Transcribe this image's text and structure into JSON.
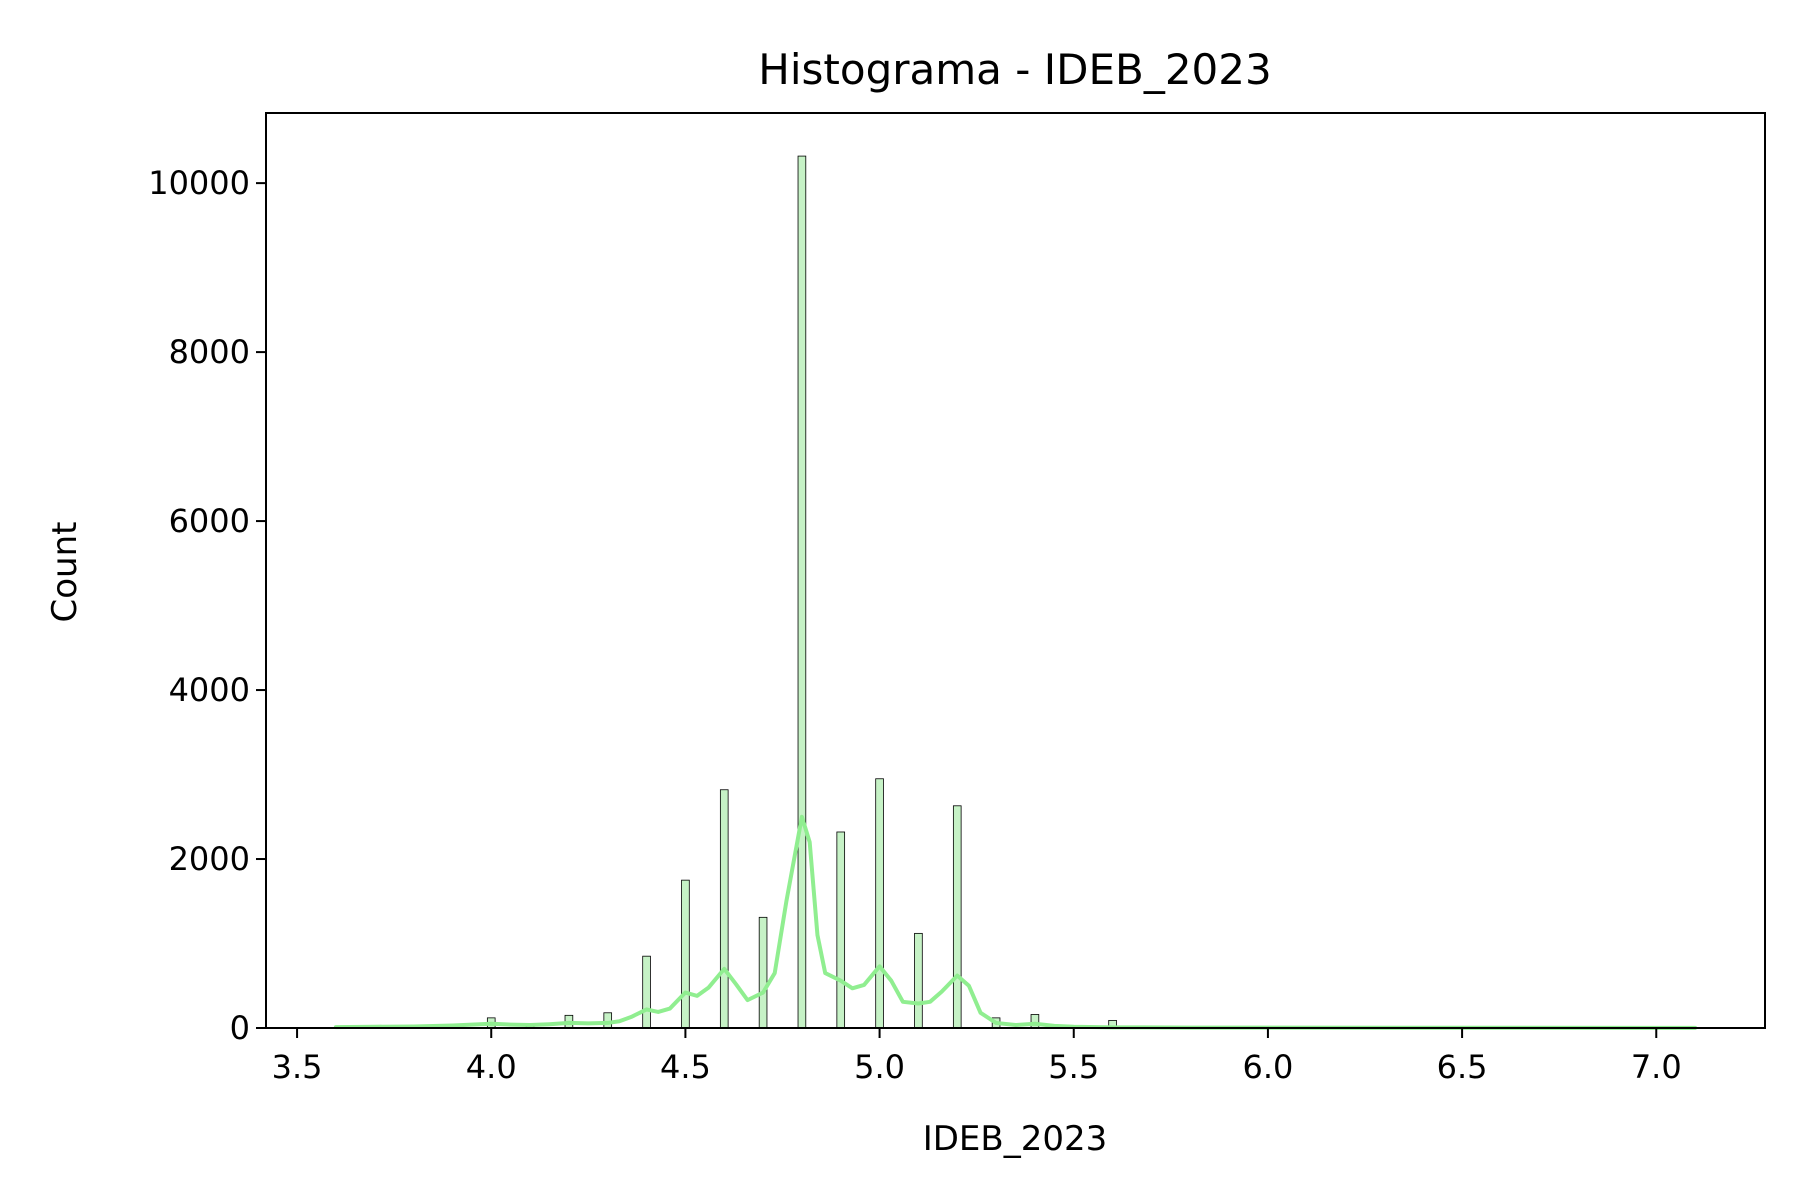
{
  "colors": {
    "bar_fill": "#c6f2c6",
    "kde_line": "#90ee90",
    "edge": "#000000"
  },
  "chart_data": {
    "type": "bar",
    "title": "Histograma - IDEB_2023",
    "xlabel": "IDEB_2023",
    "ylabel": "Count",
    "xlim": [
      3.42,
      7.28
    ],
    "ylim": [
      0,
      10830
    ],
    "bin_width": 0.02,
    "xticks": [
      3.5,
      4.0,
      4.5,
      5.0,
      5.5,
      6.0,
      6.5,
      7.0
    ],
    "xtick_labels": [
      "3.5",
      "4.0",
      "4.5",
      "5.0",
      "5.5",
      "6.0",
      "6.5",
      "7.0"
    ],
    "yticks": [
      0,
      2000,
      4000,
      6000,
      8000,
      10000
    ],
    "ytick_labels": [
      "0",
      "2000",
      "4000",
      "6000",
      "8000",
      "10000"
    ],
    "bars": [
      {
        "x": 3.6,
        "count": 5
      },
      {
        "x": 3.7,
        "count": 8
      },
      {
        "x": 3.8,
        "count": 10
      },
      {
        "x": 3.9,
        "count": 15
      },
      {
        "x": 4.0,
        "count": 120
      },
      {
        "x": 4.1,
        "count": 50
      },
      {
        "x": 4.2,
        "count": 150
      },
      {
        "x": 4.3,
        "count": 180
      },
      {
        "x": 4.4,
        "count": 850
      },
      {
        "x": 4.5,
        "count": 1750
      },
      {
        "x": 4.6,
        "count": 2820
      },
      {
        "x": 4.7,
        "count": 1310
      },
      {
        "x": 4.8,
        "count": 10320
      },
      {
        "x": 4.9,
        "count": 2320
      },
      {
        "x": 5.0,
        "count": 2950
      },
      {
        "x": 5.1,
        "count": 1120
      },
      {
        "x": 5.2,
        "count": 2630
      },
      {
        "x": 5.3,
        "count": 120
      },
      {
        "x": 5.4,
        "count": 160
      },
      {
        "x": 5.5,
        "count": 20
      },
      {
        "x": 5.6,
        "count": 90
      },
      {
        "x": 5.7,
        "count": 10
      },
      {
        "x": 5.8,
        "count": 8
      },
      {
        "x": 5.9,
        "count": 5
      },
      {
        "x": 6.0,
        "count": 5
      },
      {
        "x": 6.2,
        "count": 3
      },
      {
        "x": 6.5,
        "count": 3
      },
      {
        "x": 7.1,
        "count": 2
      }
    ],
    "kde": {
      "x": [
        3.6,
        3.7,
        3.8,
        3.9,
        4.0,
        4.05,
        4.1,
        4.15,
        4.2,
        4.25,
        4.3,
        4.33,
        4.36,
        4.4,
        4.43,
        4.46,
        4.5,
        4.53,
        4.56,
        4.6,
        4.63,
        4.66,
        4.7,
        4.73,
        4.76,
        4.8,
        4.82,
        4.84,
        4.86,
        4.9,
        4.93,
        4.96,
        5.0,
        5.03,
        5.06,
        5.1,
        5.13,
        5.16,
        5.2,
        5.23,
        5.26,
        5.3,
        5.35,
        5.4,
        5.45,
        5.5,
        5.6,
        5.8,
        6.0,
        6.5,
        7.1
      ],
      "y": [
        10,
        15,
        18,
        30,
        50,
        40,
        35,
        45,
        60,
        55,
        60,
        80,
        130,
        220,
        190,
        230,
        420,
        380,
        480,
        700,
        520,
        330,
        420,
        650,
        1500,
        2500,
        2200,
        1100,
        650,
        560,
        470,
        510,
        730,
        560,
        310,
        290,
        310,
        430,
        620,
        500,
        180,
        60,
        35,
        50,
        25,
        15,
        8,
        5,
        4,
        3,
        2
      ]
    }
  }
}
